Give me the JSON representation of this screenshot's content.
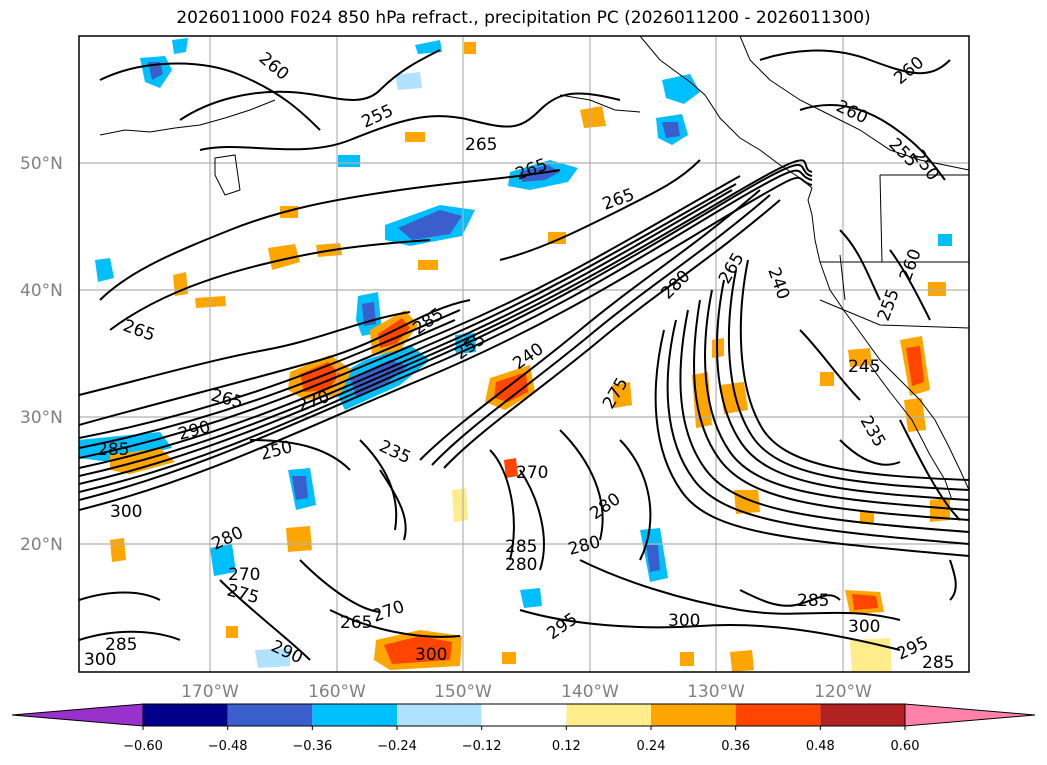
{
  "title": "2026011000 F024 850 hPa refract., precipitation PC (2026011200 - 2026011300)",
  "lat_labels": [
    "50°N",
    "40°N",
    "30°N",
    "20°N"
  ],
  "lon_labels": [
    "170°W",
    "160°W",
    "150°W",
    "140°W",
    "130°W",
    "120°W"
  ],
  "colorbar": {
    "colors": [
      "#9932cc",
      "#00008b",
      "#3a5fcd",
      "#00bfff",
      "#b0e2ff",
      "#ffffff",
      "#ffec8b",
      "#ffa500",
      "#ff4500",
      "#b22222",
      "#ff82ab"
    ],
    "ticks": [
      "−0.60",
      "−0.48",
      "−0.36",
      "−0.24",
      "−0.12",
      "0.12",
      "0.24",
      "0.36",
      "0.48",
      "0.60"
    ]
  },
  "contour_labels": [
    {
      "text": "265"
    },
    {
      "text": "265"
    },
    {
      "text": "265"
    },
    {
      "text": "265"
    },
    {
      "text": "265"
    },
    {
      "text": "260"
    },
    {
      "text": "260"
    },
    {
      "text": "255"
    },
    {
      "text": "255"
    },
    {
      "text": "250"
    },
    {
      "text": "260"
    },
    {
      "text": "280"
    },
    {
      "text": "285"
    },
    {
      "text": "255"
    },
    {
      "text": "240"
    },
    {
      "text": "270"
    },
    {
      "text": "290"
    },
    {
      "text": "285"
    },
    {
      "text": "300"
    },
    {
      "text": "250"
    },
    {
      "text": "235"
    },
    {
      "text": "270"
    },
    {
      "text": "280"
    },
    {
      "text": "285"
    },
    {
      "text": "280"
    },
    {
      "text": "280"
    },
    {
      "text": "280"
    },
    {
      "text": "270"
    },
    {
      "text": "275"
    },
    {
      "text": "265"
    },
    {
      "text": "270"
    },
    {
      "text": "295"
    },
    {
      "text": "300"
    },
    {
      "text": "300"
    },
    {
      "text": "300"
    },
    {
      "text": "285"
    },
    {
      "text": "295"
    },
    {
      "text": "285"
    },
    {
      "text": "245"
    },
    {
      "text": "235"
    },
    {
      "text": "255"
    },
    {
      "text": "260"
    },
    {
      "text": "240"
    },
    {
      "text": "265"
    },
    {
      "text": "275"
    },
    {
      "text": "290"
    },
    {
      "text": "285"
    },
    {
      "text": "300"
    }
  ]
}
